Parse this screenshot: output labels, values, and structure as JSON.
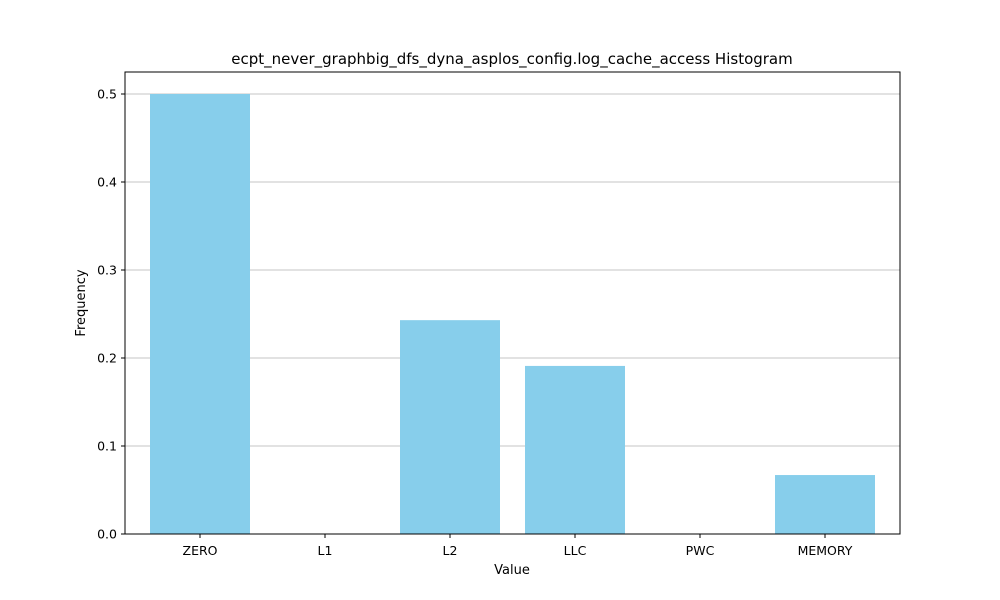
{
  "chart_data": {
    "type": "bar",
    "title": "ecpt_never_graphbig_dfs_dyna_asplos_config.log_cache_access Histogram",
    "xlabel": "Value",
    "ylabel": "Frequency",
    "categories": [
      "ZERO",
      "L1",
      "L2",
      "LLC",
      "PWC",
      "MEMORY"
    ],
    "values": [
      0.5,
      0.0,
      0.243,
      0.191,
      0.0,
      0.067
    ],
    "ylim": [
      0,
      0.525
    ],
    "yticks": [
      "0.0",
      "0.1",
      "0.2",
      "0.3",
      "0.4",
      "0.5"
    ],
    "grid": "y",
    "bar_color": "#87ceeb"
  }
}
